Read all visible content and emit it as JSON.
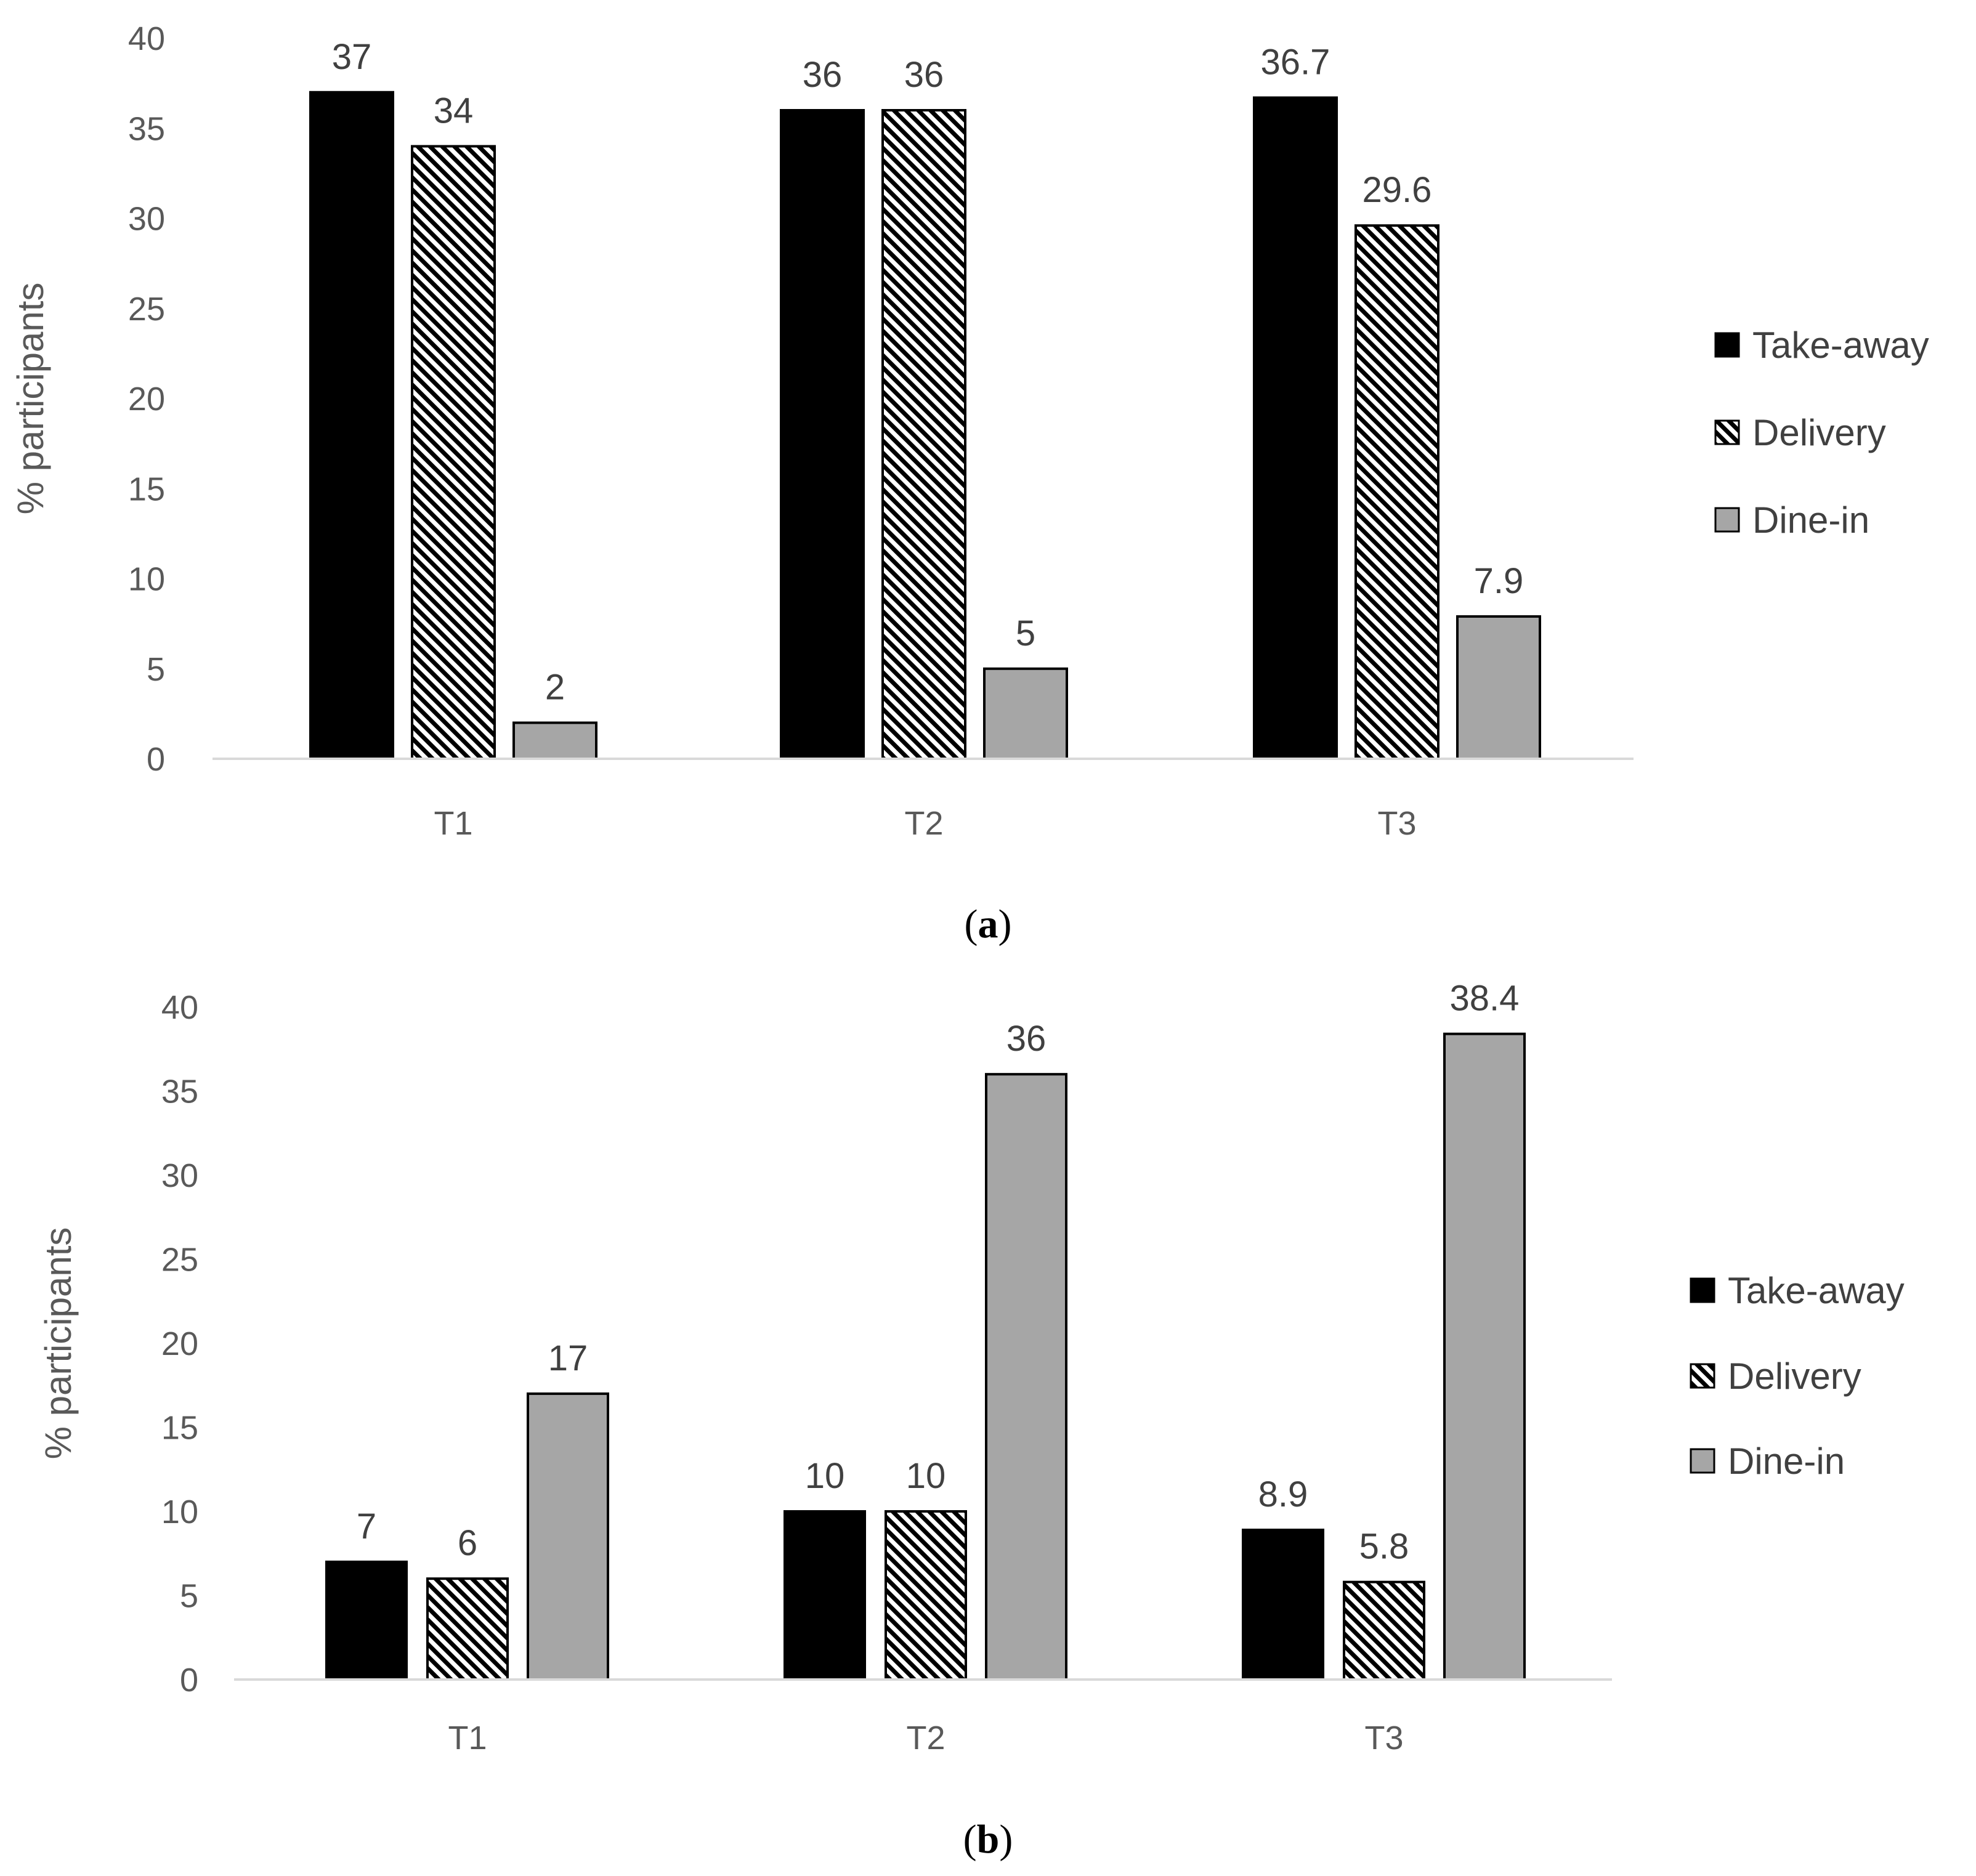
{
  "chart_data": [
    {
      "type": "bar",
      "panel_label": "a",
      "categories": [
        "T1",
        "T2",
        "T3"
      ],
      "series": [
        {
          "name": "Take-away",
          "values": [
            37,
            36,
            36.7
          ],
          "labels": [
            "37",
            "36",
            "36.7"
          ],
          "fill": "black"
        },
        {
          "name": "Delivery",
          "values": [
            34,
            36,
            29.6
          ],
          "labels": [
            "34",
            "36",
            "29.6"
          ],
          "fill": "hatch"
        },
        {
          "name": "Dine-in",
          "values": [
            2,
            5,
            7.9
          ],
          "labels": [
            "2",
            "5",
            "7.9"
          ],
          "fill": "gray"
        }
      ],
      "ylabel": "% participants",
      "xlabel": "",
      "ylim": [
        0,
        40
      ],
      "yticks": [
        0,
        5,
        10,
        15,
        20,
        25,
        30,
        35,
        40
      ],
      "grid": false,
      "legend_position": "right"
    },
    {
      "type": "bar",
      "panel_label": "b",
      "categories": [
        "T1",
        "T2",
        "T3"
      ],
      "series": [
        {
          "name": "Take-away",
          "values": [
            7,
            10,
            8.9
          ],
          "labels": [
            "7",
            "10",
            "8.9"
          ],
          "fill": "black"
        },
        {
          "name": "Delivery",
          "values": [
            6,
            10,
            5.8
          ],
          "labels": [
            "6",
            "10",
            "5.8"
          ],
          "fill": "hatch"
        },
        {
          "name": "Dine-in",
          "values": [
            17,
            36,
            38.4
          ],
          "labels": [
            "17",
            "36",
            "38.4"
          ],
          "fill": "gray"
        }
      ],
      "ylabel": "% participants",
      "xlabel": "",
      "ylim": [
        0,
        40
      ],
      "yticks": [
        0,
        5,
        10,
        15,
        20,
        25,
        30,
        35,
        40
      ],
      "grid": false,
      "legend_position": "right"
    }
  ],
  "colors": {
    "take_away": "#000000",
    "dine_in": "#a6a6a6",
    "bar_stroke": "#000000",
    "axis_line": "#d9d9d9",
    "tick_text": "#595959",
    "label_text": "#404040"
  }
}
